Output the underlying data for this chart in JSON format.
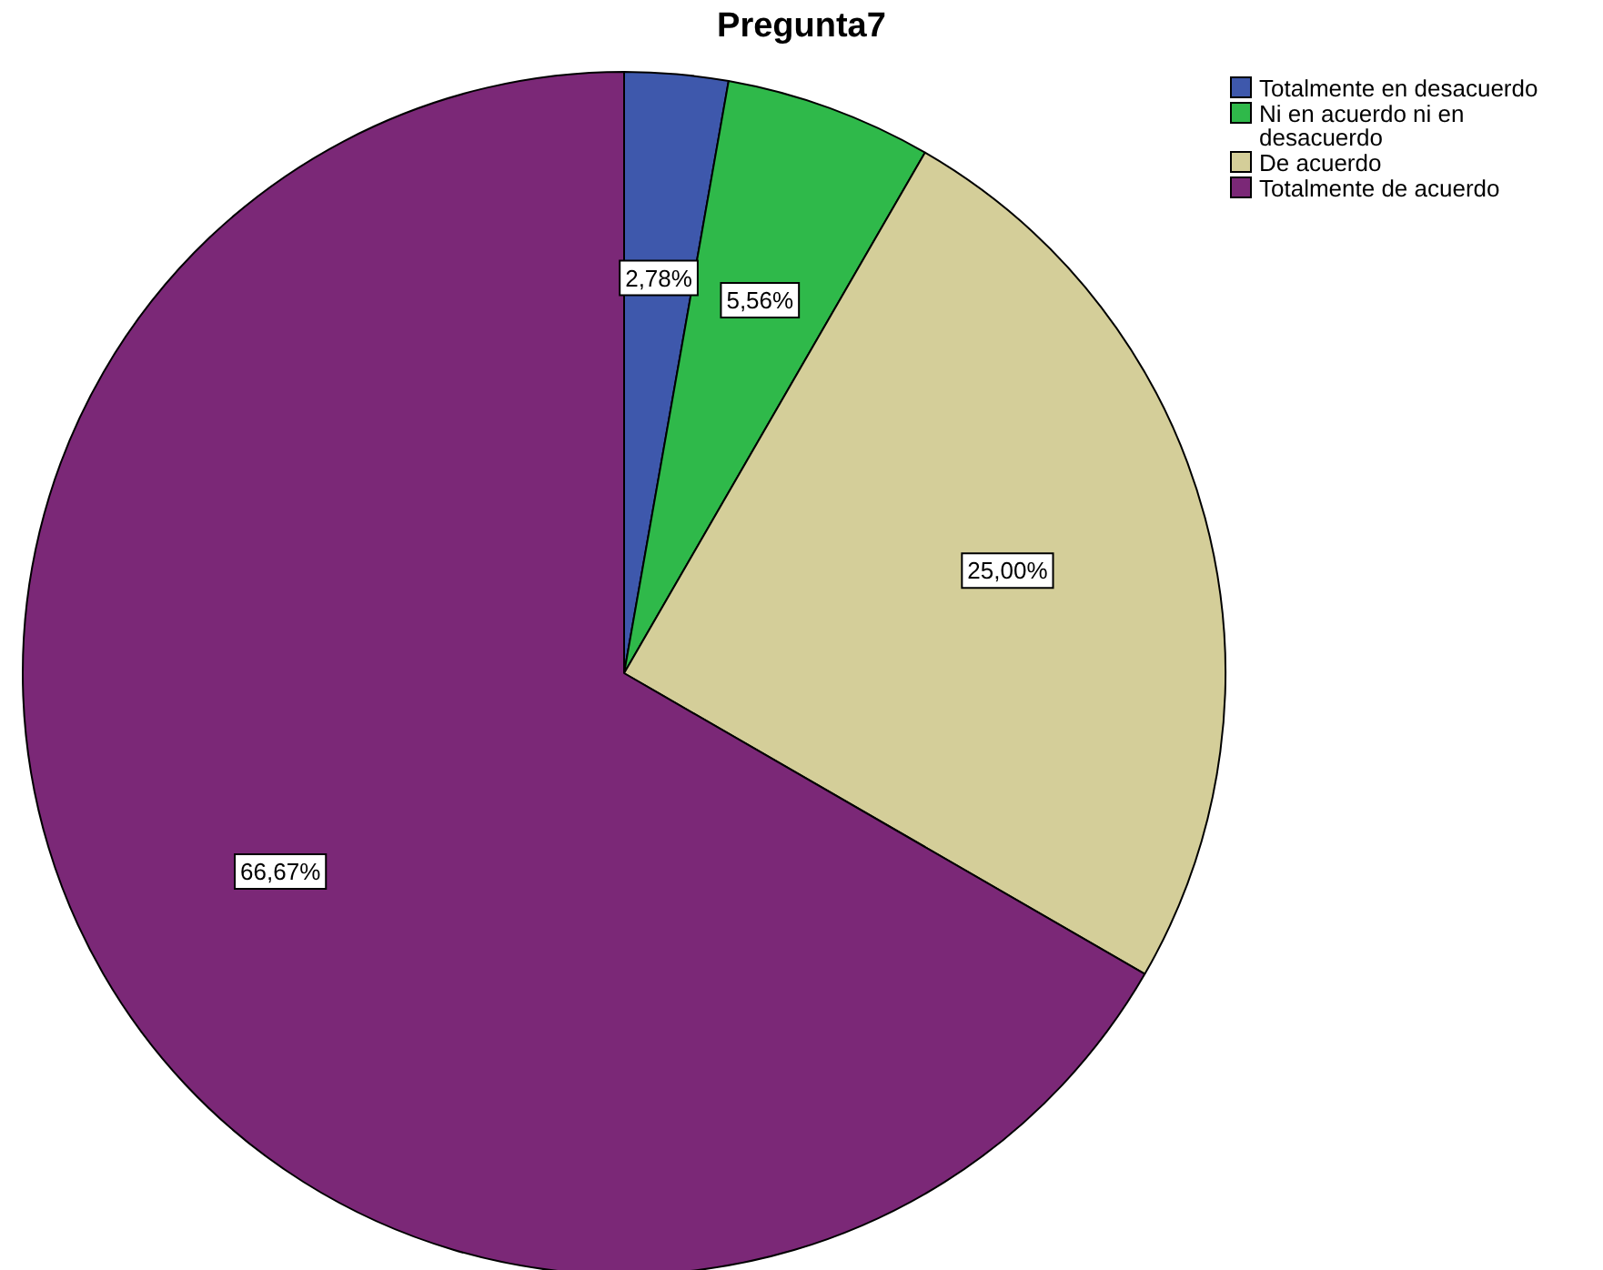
{
  "chart_data": {
    "type": "pie",
    "title": "Pregunta7",
    "categories": [
      "Totalmente en desacuerdo",
      "Ni en acuerdo ni en desacuerdo",
      "De acuerdo",
      "Totalmente de acuerdo"
    ],
    "values": [
      2.78,
      5.56,
      25.0,
      66.67
    ],
    "colors": [
      "#3e58ac",
      "#2fb94a",
      "#d4ce99",
      "#7b2877"
    ],
    "value_labels": [
      "2,78%",
      "5,56%",
      "25,00%",
      "66,67%"
    ],
    "legend": "top right"
  }
}
